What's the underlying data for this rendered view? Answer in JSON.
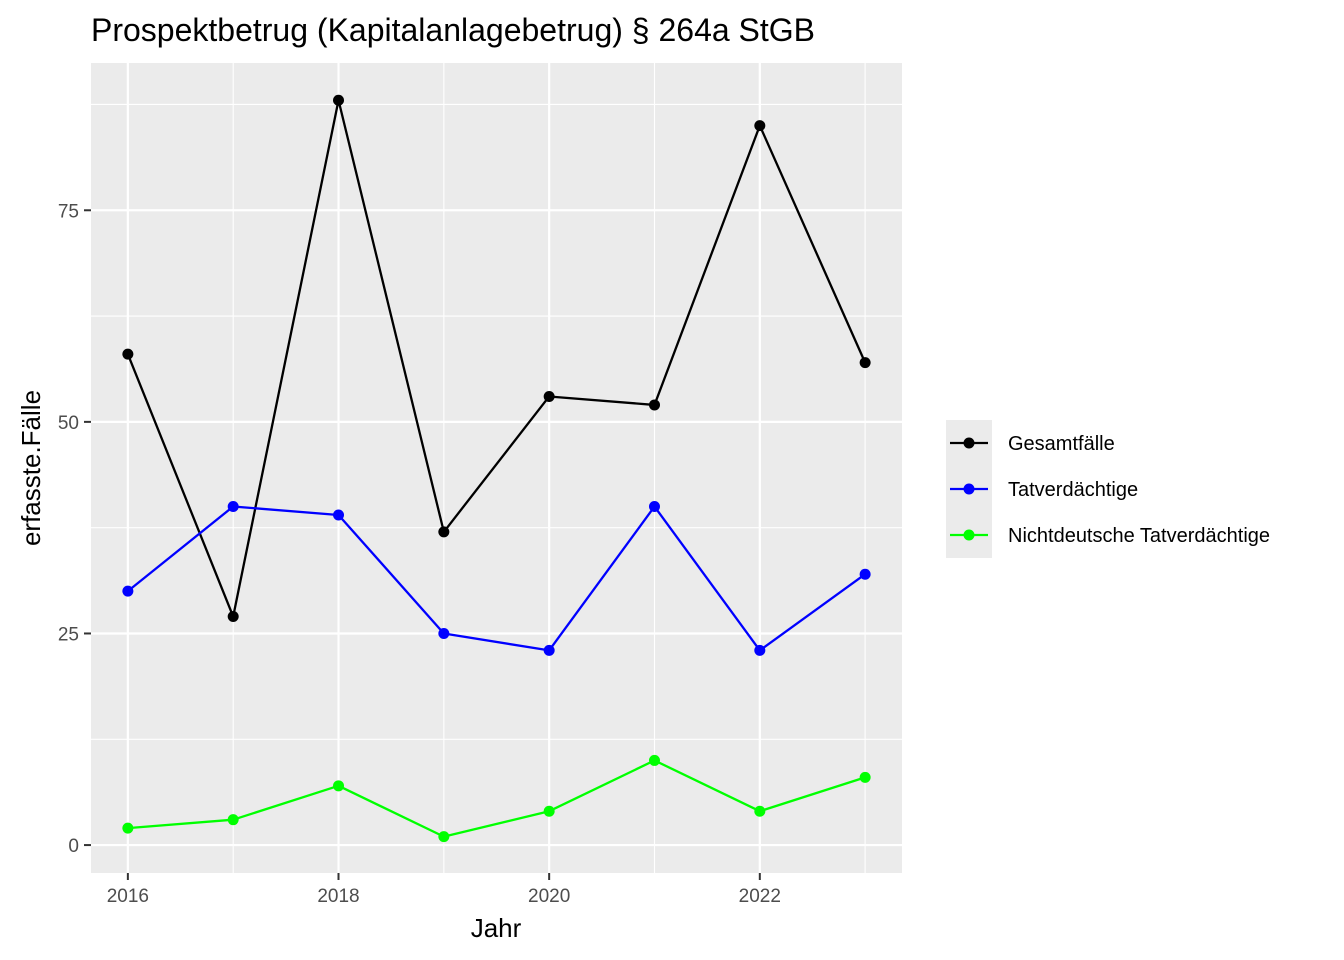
{
  "chart_data": {
    "type": "line",
    "title": "Prospektbetrug (Kapitalanlagebetrug) § 264a StGB",
    "xlabel": "Jahr",
    "ylabel": "erfasste.Fälle",
    "x": [
      2016,
      2017,
      2018,
      2019,
      2020,
      2021,
      2022,
      2023
    ],
    "xlim": [
      2015.65,
      2023.35
    ],
    "ylim": [
      -3.3,
      92.4
    ],
    "x_ticks": [
      2016,
      2018,
      2020,
      2022
    ],
    "y_ticks": [
      0,
      25,
      50,
      75
    ],
    "x_tick_labels": [
      "2016",
      "2018",
      "2020",
      "2022"
    ],
    "y_tick_labels": [
      "0",
      "25",
      "50",
      "75"
    ],
    "grid": true,
    "legend_position": "right",
    "series": [
      {
        "name": "Gesamtfälle",
        "color": "#000000",
        "values": [
          58,
          27,
          88,
          37,
          53,
          52,
          85,
          57
        ]
      },
      {
        "name": "Tatverdächtige",
        "color": "#0000ff",
        "values": [
          30,
          40,
          39,
          25,
          23,
          40,
          23,
          32
        ]
      },
      {
        "name": "Nichtdeutsche Tatverdächtige",
        "color": "#00ff00",
        "values": [
          2,
          3,
          7,
          1,
          4,
          10,
          4,
          8
        ]
      }
    ]
  }
}
